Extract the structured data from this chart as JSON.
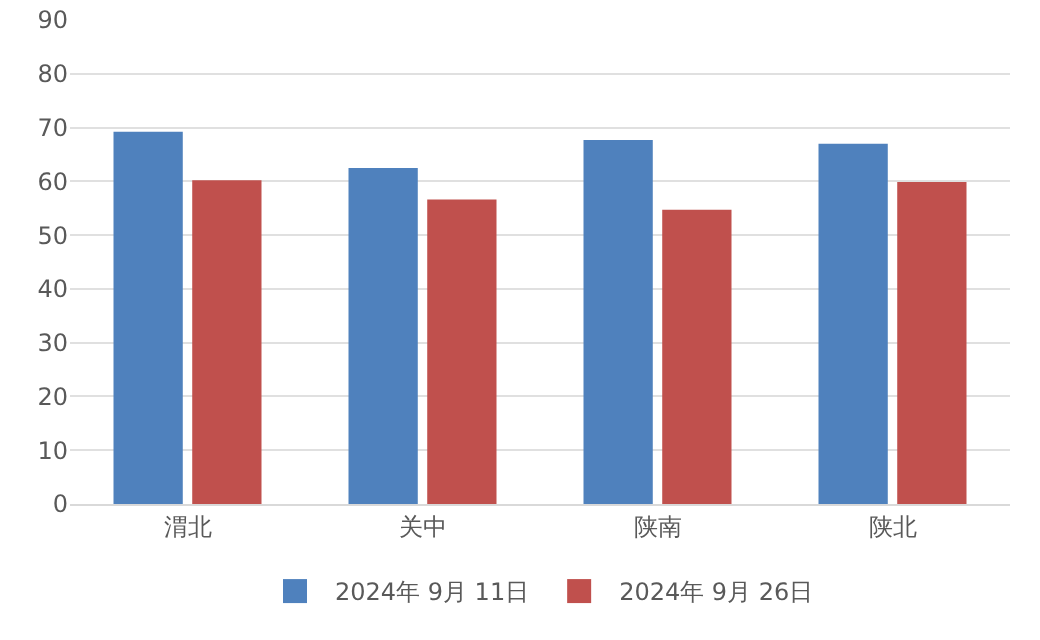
{
  "chart_data": {
    "type": "bar",
    "categories": [
      "渭北",
      "关中",
      "陕南",
      "陕北"
    ],
    "series": [
      {
        "name": "2024年 9月 11日",
        "color": "#4f81bd",
        "values": [
          69.2,
          62.5,
          67.7,
          67.0
        ]
      },
      {
        "name": "2024年 9月 26日",
        "color": "#c0504d",
        "values": [
          60.2,
          56.6,
          54.7,
          59.9
        ]
      }
    ],
    "ylim": [
      0,
      90
    ],
    "yticks": [
      0,
      10,
      20,
      30,
      40,
      50,
      60,
      70,
      80,
      90
    ],
    "grid": "y",
    "legend": "bottom"
  }
}
